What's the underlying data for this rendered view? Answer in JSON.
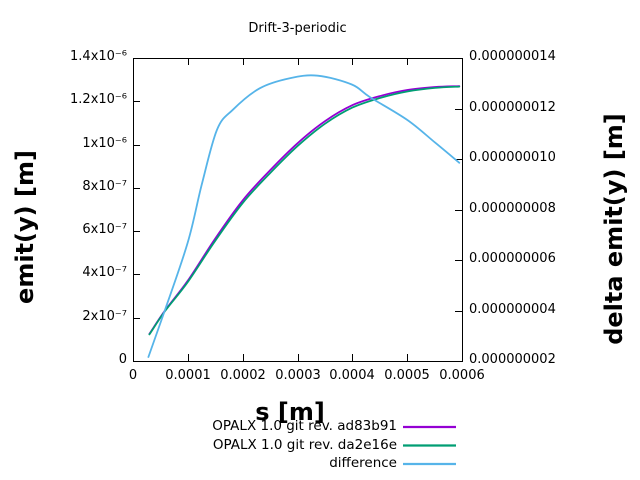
{
  "title": "Drift-3-periodic",
  "axes": {
    "x": {
      "label": "s [m]",
      "ticks": [
        "0",
        "0.0001",
        "0.0002",
        "0.0003",
        "0.0004",
        "0.0005",
        "0.0006"
      ]
    },
    "left": {
      "label": "emit(y) [m]",
      "ticks": [
        "1.4x10⁻⁶",
        "1.2x10⁻⁶",
        "1x10⁻⁶",
        "8x10⁻⁷",
        "6x10⁻⁷",
        "4x10⁻⁷",
        "2x10⁻⁷",
        "0"
      ]
    },
    "right": {
      "label": "delta emit(y) [m]",
      "ticks": [
        "0.000000014",
        "0.000000012",
        "0.000000010",
        "0.000000008",
        "0.000000006",
        "0.000000004",
        "0.000000002"
      ]
    }
  },
  "chart_data": {
    "type": "line",
    "title": "Drift-3-periodic",
    "xlabel": "s [m]",
    "ylabel": "emit(y) [m]",
    "y2label": "delta emit(y) [m]",
    "xlim": [
      0,
      0.0006
    ],
    "ylim": [
      0,
      1.4e-06
    ],
    "y2lim": [
      2e-09,
      1.4e-08
    ],
    "grid": false,
    "legend_position": "below-right",
    "series": [
      {
        "name": "OPALX 1.0 git rev. ad83b91",
        "color": "#9400d3",
        "axis": "left",
        "x": [
          3e-05,
          5.8e-05,
          0.0001,
          0.00015,
          0.0002,
          0.00025,
          0.0003,
          0.00035,
          0.0004,
          0.00045,
          0.0005,
          0.000551,
          0.000595
        ],
        "y": [
          1.25e-07,
          2.32e-07,
          3.71e-07,
          5.66e-07,
          7.42e-07,
          8.81e-07,
          1.006e-06,
          1.108e-06,
          1.182e-06,
          1.224e-06,
          1.252e-06,
          1.266e-06,
          1.27e-06
        ]
      },
      {
        "name": "OPALX 1.0 git rev. da2e16e",
        "color": "#009e73",
        "axis": "left",
        "x": [
          3e-05,
          5.8e-05,
          0.0001,
          0.00015,
          0.0002,
          0.00025,
          0.0003,
          0.00035,
          0.0004,
          0.00045,
          0.0005,
          0.000551,
          0.000595
        ],
        "y": [
          1.23e-07,
          2.29e-07,
          3.65e-07,
          5.56e-07,
          7.3e-07,
          8.68e-07,
          9.93e-07,
          1.096e-06,
          1.171e-06,
          1.215e-06,
          1.245e-06,
          1.262e-06,
          1.268e-06
        ]
      },
      {
        "name": "difference",
        "color": "#56b4e9",
        "axis": "right",
        "x": [
          2.8e-05,
          5.8e-05,
          0.0001,
          0.000125,
          0.000153,
          0.000182,
          0.000231,
          0.000286,
          0.000337,
          0.000399,
          0.000432,
          0.0005,
          0.000551,
          0.000595
        ],
        "y": [
          2.16e-09,
          4e-09,
          6.7e-09,
          8.95e-09,
          1.115e-08,
          1.195e-08,
          1.28e-08,
          1.32e-08,
          1.33e-08,
          1.295e-08,
          1.245e-08,
          1.155e-08,
          1.065e-08,
          9.85e-09
        ]
      }
    ]
  }
}
